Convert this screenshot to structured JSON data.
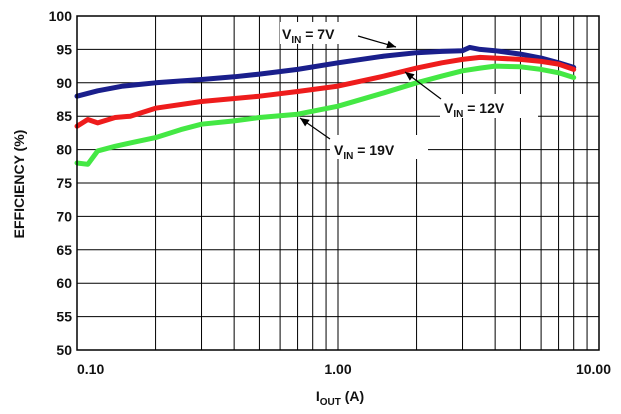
{
  "chart_data": {
    "type": "line",
    "title": "",
    "xscale": "log",
    "xlim": [
      0.1,
      10
    ],
    "ylim": [
      50,
      100
    ],
    "grid": true,
    "xlabel": {
      "main": "I",
      "sub": "OUT",
      "suffix": " (A)"
    },
    "ylabel": "EFFICIENCY (%)",
    "xticks": [
      {
        "value": 0.1,
        "label": "0.10"
      },
      {
        "value": 1,
        "label": "1.00"
      },
      {
        "value": 10,
        "label": "10.00"
      }
    ],
    "yticks": [
      {
        "value": 50,
        "label": "50"
      },
      {
        "value": 55,
        "label": "55"
      },
      {
        "value": 60,
        "label": "60"
      },
      {
        "value": 65,
        "label": "65"
      },
      {
        "value": 70,
        "label": "70"
      },
      {
        "value": 75,
        "label": "75"
      },
      {
        "value": 80,
        "label": "80"
      },
      {
        "value": 85,
        "label": "85"
      },
      {
        "value": 90,
        "label": "90"
      },
      {
        "value": 95,
        "label": "95"
      },
      {
        "value": 100,
        "label": "100"
      }
    ],
    "series": [
      {
        "color": "#1a1f8c",
        "label": {
          "main": "V",
          "sub": "IN",
          "suffix": " = 7V"
        },
        "x": [
          0.1,
          0.12,
          0.15,
          0.2,
          0.3,
          0.4,
          0.5,
          0.7,
          1.0,
          1.5,
          2.0,
          2.5,
          3.0,
          3.2,
          3.5,
          4.0,
          5.0,
          6.0,
          7.0,
          8.0
        ],
        "y": [
          88.0,
          88.8,
          89.5,
          90.0,
          90.5,
          90.9,
          91.3,
          92.0,
          93.0,
          94.0,
          94.5,
          94.7,
          94.8,
          95.3,
          95.0,
          94.8,
          94.3,
          93.7,
          93.0,
          92.3
        ]
      },
      {
        "color": "#ee1c1c",
        "label": {
          "main": "V",
          "sub": "IN",
          "suffix": " = 12V"
        },
        "x": [
          0.1,
          0.11,
          0.12,
          0.14,
          0.16,
          0.2,
          0.3,
          0.5,
          0.7,
          1.0,
          1.5,
          2.0,
          2.5,
          3.0,
          3.5,
          4.0,
          5.0,
          6.0,
          7.0,
          8.0
        ],
        "y": [
          83.5,
          84.5,
          84.0,
          84.8,
          85.0,
          86.2,
          87.2,
          88.0,
          88.7,
          89.5,
          91.0,
          92.2,
          93.0,
          93.5,
          93.8,
          93.7,
          93.5,
          93.2,
          92.8,
          92.0
        ]
      },
      {
        "color": "#44e844",
        "label": {
          "main": "V",
          "sub": "IN",
          "suffix": " = 19V"
        },
        "x": [
          0.1,
          0.11,
          0.12,
          0.14,
          0.16,
          0.2,
          0.25,
          0.3,
          0.4,
          0.5,
          0.7,
          1.0,
          1.5,
          2.0,
          2.5,
          3.0,
          3.5,
          4.0,
          5.0,
          6.0,
          7.0,
          8.0
        ],
        "y": [
          78.0,
          77.8,
          79.8,
          80.5,
          81.0,
          81.8,
          83.0,
          83.8,
          84.3,
          84.8,
          85.3,
          86.5,
          88.5,
          90.0,
          91.0,
          91.8,
          92.2,
          92.5,
          92.4,
          92.0,
          91.5,
          90.8
        ]
      }
    ]
  }
}
